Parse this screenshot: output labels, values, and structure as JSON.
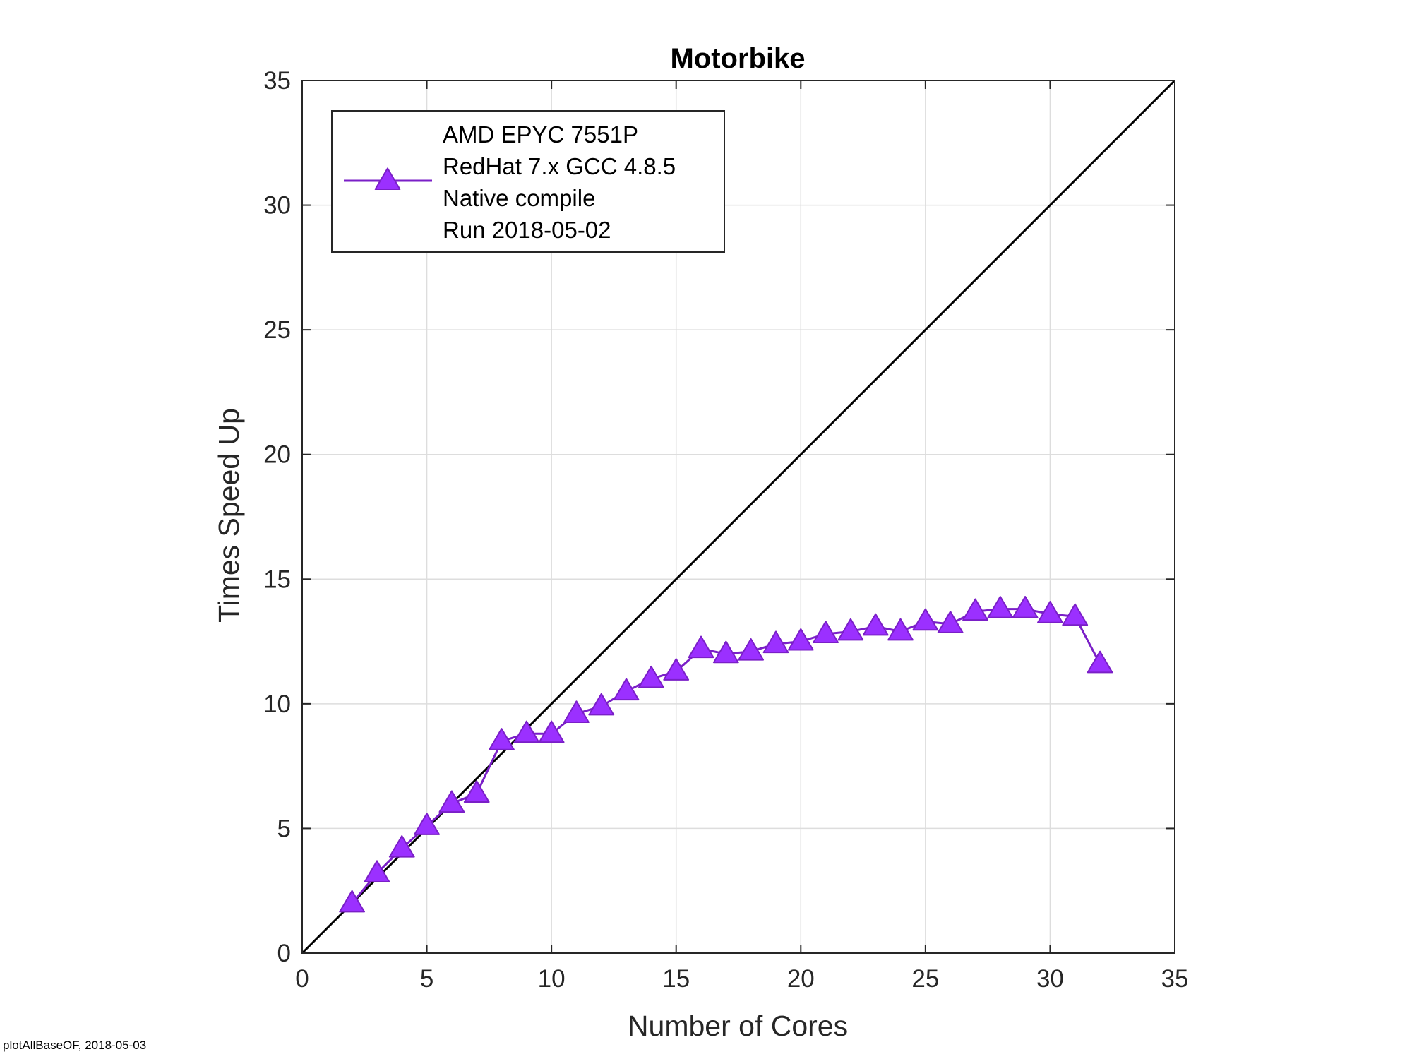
{
  "footer": "plotAllBaseOF, 2018-05-03",
  "colors": {
    "series": "#7a1fc7",
    "marker_fill": "#9b30ff",
    "ideal": "#000000",
    "grid": "#dddddd",
    "axes": "#262626"
  },
  "chart_data": {
    "type": "line",
    "title": "Motorbike",
    "xlabel": "Number of Cores",
    "ylabel": "Times Speed Up",
    "xlim": [
      0,
      35
    ],
    "ylim": [
      0,
      35
    ],
    "xticks": [
      0,
      5,
      10,
      15,
      20,
      25,
      30,
      35
    ],
    "yticks": [
      0,
      5,
      10,
      15,
      20,
      25,
      30,
      35
    ],
    "grid": true,
    "legend_position": "top-left",
    "legend_lines": [
      "AMD EPYC 7551P",
      "RedHat 7.x GCC 4.8.5",
      "Native compile",
      "Run 2018-05-02"
    ],
    "series": [
      {
        "marker": "triangle",
        "x": [
          2,
          3,
          4,
          5,
          6,
          7,
          8,
          9,
          10,
          11,
          12,
          13,
          14,
          15,
          16,
          17,
          18,
          19,
          20,
          21,
          22,
          23,
          24,
          25,
          26,
          27,
          28,
          29,
          30,
          31,
          32
        ],
        "y": [
          2.0,
          3.2,
          4.2,
          5.1,
          6.0,
          6.4,
          8.5,
          8.8,
          8.8,
          9.6,
          9.9,
          10.5,
          11.0,
          11.3,
          12.2,
          12.0,
          12.1,
          12.4,
          12.5,
          12.8,
          12.9,
          13.1,
          12.9,
          13.3,
          13.2,
          13.7,
          13.8,
          13.8,
          13.6,
          13.5,
          11.6
        ]
      }
    ],
    "reference_line": {
      "x": [
        0,
        35
      ],
      "y": [
        0,
        35
      ]
    }
  }
}
